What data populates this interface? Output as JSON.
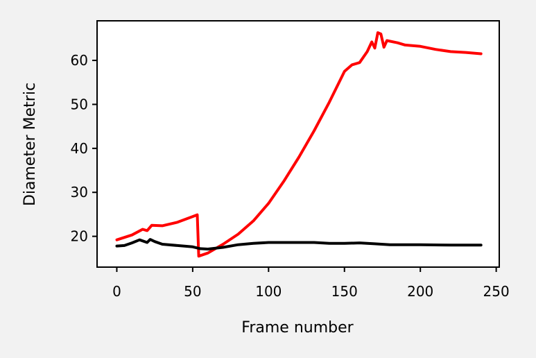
{
  "chart_data": {
    "type": "line",
    "title": "",
    "xlabel": "Frame number",
    "ylabel": "Diameter Metric",
    "xlim": [
      -13,
      252
    ],
    "ylim": [
      13,
      69
    ],
    "xticks": [
      0,
      50,
      100,
      150,
      200,
      250
    ],
    "yticks": [
      20,
      30,
      40,
      50,
      60
    ],
    "grid": false,
    "legend": "none",
    "series": [
      {
        "color": "#ff0000",
        "points": [
          [
            0,
            19.2
          ],
          [
            10,
            20.3
          ],
          [
            17,
            21.6
          ],
          [
            20,
            21.3
          ],
          [
            23,
            22.5
          ],
          [
            30,
            22.4
          ],
          [
            40,
            23.2
          ],
          [
            50,
            24.5
          ],
          [
            53,
            24.9
          ],
          [
            54,
            15.5
          ],
          [
            60,
            16.2
          ],
          [
            70,
            18.2
          ],
          [
            80,
            20.5
          ],
          [
            90,
            23.5
          ],
          [
            100,
            27.5
          ],
          [
            110,
            32.5
          ],
          [
            120,
            38.0
          ],
          [
            130,
            44.0
          ],
          [
            140,
            50.5
          ],
          [
            150,
            57.5
          ],
          [
            155,
            59.0
          ],
          [
            160,
            59.5
          ],
          [
            165,
            62.0
          ],
          [
            168,
            64.2
          ],
          [
            170,
            62.8
          ],
          [
            172,
            66.3
          ],
          [
            174,
            66.0
          ],
          [
            176,
            63.0
          ],
          [
            178,
            64.5
          ],
          [
            185,
            64.0
          ],
          [
            190,
            63.5
          ],
          [
            200,
            63.2
          ],
          [
            210,
            62.5
          ],
          [
            220,
            62.0
          ],
          [
            230,
            61.8
          ],
          [
            240,
            61.5
          ]
        ]
      },
      {
        "color": "#000000",
        "points": [
          [
            0,
            17.8
          ],
          [
            5,
            17.9
          ],
          [
            10,
            18.5
          ],
          [
            15,
            19.2
          ],
          [
            20,
            18.6
          ],
          [
            22,
            19.3
          ],
          [
            25,
            18.8
          ],
          [
            30,
            18.2
          ],
          [
            40,
            17.9
          ],
          [
            50,
            17.6
          ],
          [
            55,
            17.2
          ],
          [
            60,
            17.1
          ],
          [
            70,
            17.5
          ],
          [
            80,
            18.1
          ],
          [
            90,
            18.4
          ],
          [
            100,
            18.6
          ],
          [
            110,
            18.6
          ],
          [
            120,
            18.6
          ],
          [
            130,
            18.6
          ],
          [
            140,
            18.4
          ],
          [
            150,
            18.4
          ],
          [
            160,
            18.5
          ],
          [
            170,
            18.3
          ],
          [
            180,
            18.1
          ],
          [
            200,
            18.1
          ],
          [
            220,
            18.0
          ],
          [
            240,
            18.0
          ]
        ]
      }
    ]
  }
}
